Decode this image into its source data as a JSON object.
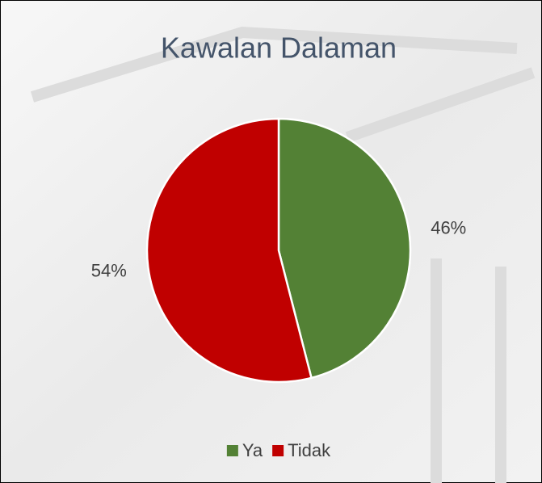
{
  "chart_data": {
    "type": "pie",
    "title": "Kawalan Dalaman",
    "categories": [
      "Ya",
      "Tidak"
    ],
    "values": [
      46,
      54
    ],
    "value_labels": [
      "46%",
      "54%"
    ],
    "colors": [
      "#538135",
      "#c00000"
    ],
    "legend": "bottom"
  }
}
